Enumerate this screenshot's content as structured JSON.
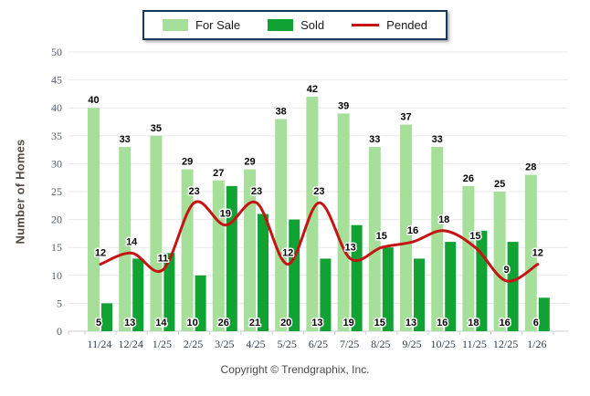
{
  "legend": {
    "items": [
      {
        "key": "for_sale",
        "label": "For Sale",
        "swatch": "bar"
      },
      {
        "key": "sold",
        "label": "Sold",
        "swatch": "bar"
      },
      {
        "key": "pended",
        "label": "Pended",
        "swatch": "line"
      }
    ]
  },
  "colors": {
    "for_sale": "#a6df9a",
    "sold": "#11a234",
    "pended": "#c41414",
    "grid": "#e8e8e8",
    "axis": "#c9cdd4",
    "legend_border": "#17375E"
  },
  "footer": {
    "copyright": "Copyright © Trendgraphix, Inc."
  },
  "chart_data": {
    "type": "bar",
    "title": "",
    "xlabel": "",
    "ylabel": "Number of Homes",
    "ylim": [
      0,
      50
    ],
    "ytick_step": 5,
    "grid": true,
    "legend_position": "top",
    "categories": [
      "11/24",
      "12/24",
      "1/25",
      "2/25",
      "3/25",
      "4/25",
      "5/25",
      "6/25",
      "7/25",
      "8/25",
      "9/25",
      "10/25",
      "11/25",
      "12/25",
      "1/26"
    ],
    "series": [
      {
        "name": "For Sale",
        "type": "bar",
        "color_key": "for_sale",
        "values": [
          40,
          33,
          35,
          29,
          27,
          29,
          38,
          42,
          39,
          33,
          37,
          33,
          26,
          25,
          28
        ]
      },
      {
        "name": "Sold",
        "type": "bar",
        "color_key": "sold",
        "values": [
          5,
          13,
          14,
          10,
          26,
          21,
          20,
          13,
          19,
          15,
          13,
          16,
          18,
          16,
          6
        ]
      },
      {
        "name": "Pended",
        "type": "line",
        "color_key": "pended",
        "values": [
          12,
          14,
          11,
          23,
          19,
          23,
          12,
          23,
          13,
          15,
          16,
          18,
          15,
          9,
          12
        ]
      }
    ]
  }
}
